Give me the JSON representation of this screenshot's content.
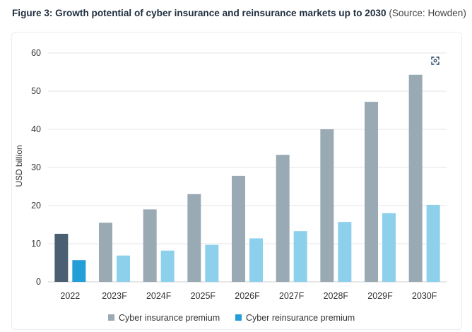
{
  "header": {
    "title": "Figure 3: Growth potential of cyber insurance and reinsurance markets up to 2030",
    "source": "(Source: Howden)"
  },
  "toolbar": {
    "zoom_icon": "expand-icon"
  },
  "colors": {
    "insurance_2022": "#4a5f72",
    "insurance": "#9aaab4",
    "reinsurance_2022": "#229ed8",
    "reinsurance": "#8dd0ec",
    "grid": "#e6e6e6",
    "axis_text": "#333333"
  },
  "chart_data": {
    "type": "bar",
    "title": "",
    "xlabel": "",
    "ylabel": "USD billion",
    "ylim": [
      0,
      60
    ],
    "yticks": [
      0,
      10,
      20,
      30,
      40,
      50,
      60
    ],
    "grid": true,
    "legend_position": "bottom-center",
    "categories": [
      "2022",
      "2023F",
      "2024F",
      "2025F",
      "2026F",
      "2027F",
      "2028F",
      "2029F",
      "2030F"
    ],
    "series": [
      {
        "name": "Cyber insurance premium",
        "values": [
          12.6,
          15.5,
          19.0,
          23.0,
          27.8,
          33.3,
          40.0,
          47.2,
          54.3
        ]
      },
      {
        "name": "Cyber reinsurance premium",
        "values": [
          5.7,
          6.9,
          8.2,
          9.7,
          11.4,
          13.3,
          15.7,
          18.0,
          20.2
        ]
      }
    ]
  }
}
